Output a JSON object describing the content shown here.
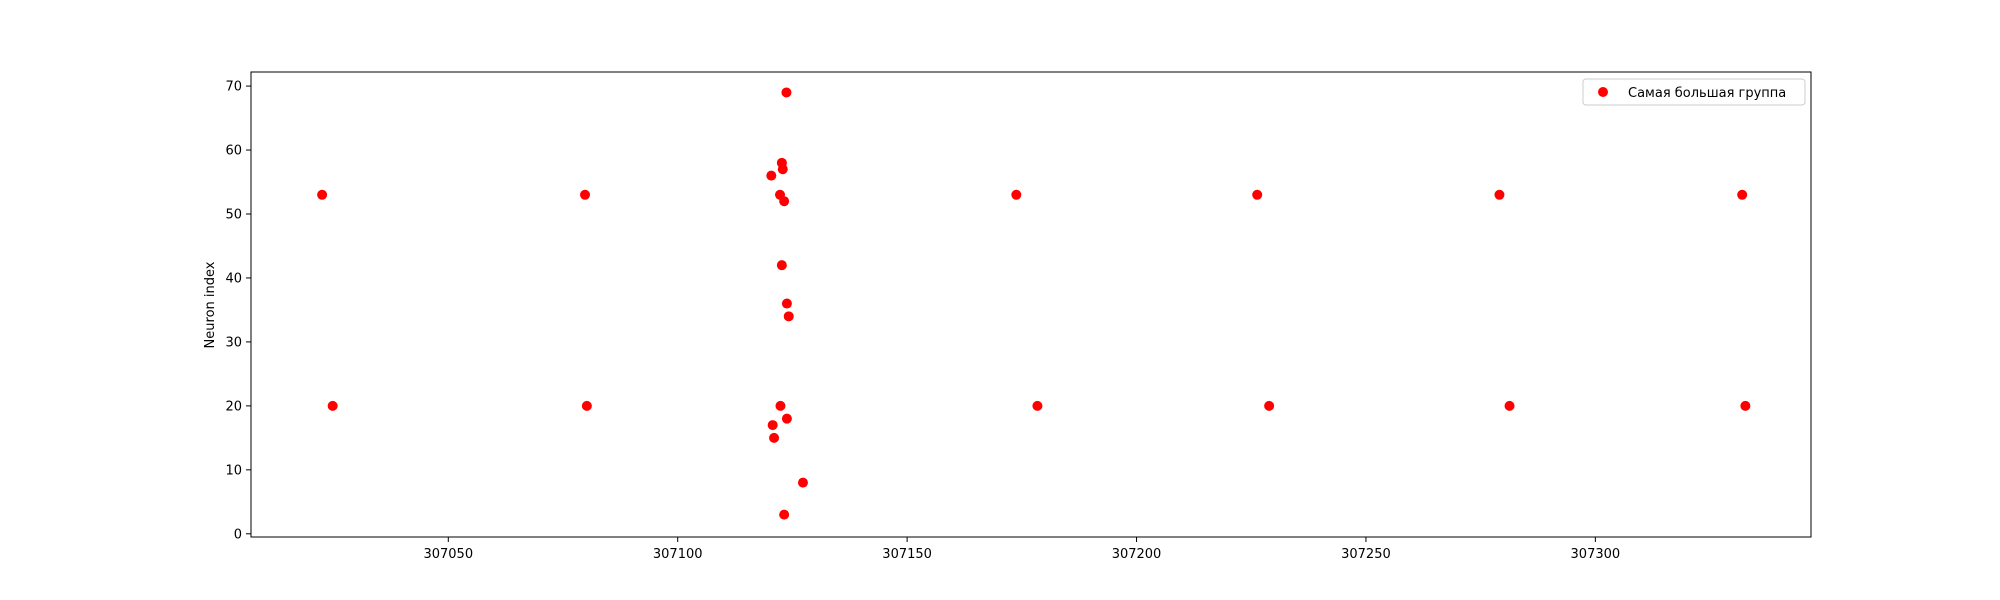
{
  "chart_data": {
    "type": "scatter",
    "title": "",
    "xlabel": "",
    "ylabel": "Neuron index",
    "xlim": [
      307007,
      307347
    ],
    "ylim": [
      -0.5,
      72.2
    ],
    "xticks": [
      307050,
      307100,
      307150,
      307200,
      307250,
      307300
    ],
    "yticks": [
      0,
      10,
      20,
      30,
      40,
      50,
      60,
      70
    ],
    "grid": false,
    "legend": {
      "position": "top-right"
    },
    "colors": {
      "series": "#ff0000",
      "axes": "#000000"
    },
    "series": [
      {
        "name": "Самая большая группа",
        "points": [
          {
            "x": 307022.5,
            "y": 53
          },
          {
            "x": 307024.8,
            "y": 20
          },
          {
            "x": 307079.8,
            "y": 53
          },
          {
            "x": 307080.2,
            "y": 20
          },
          {
            "x": 307120.4,
            "y": 56
          },
          {
            "x": 307120.7,
            "y": 17
          },
          {
            "x": 307121.0,
            "y": 15
          },
          {
            "x": 307122.3,
            "y": 53
          },
          {
            "x": 307122.4,
            "y": 20
          },
          {
            "x": 307122.7,
            "y": 42
          },
          {
            "x": 307122.7,
            "y": 58
          },
          {
            "x": 307122.9,
            "y": 57
          },
          {
            "x": 307123.2,
            "y": 3
          },
          {
            "x": 307123.2,
            "y": 52
          },
          {
            "x": 307123.7,
            "y": 69
          },
          {
            "x": 307123.8,
            "y": 36
          },
          {
            "x": 307123.8,
            "y": 18
          },
          {
            "x": 307124.2,
            "y": 34
          },
          {
            "x": 307127.3,
            "y": 8
          },
          {
            "x": 307173.8,
            "y": 53
          },
          {
            "x": 307178.4,
            "y": 20
          },
          {
            "x": 307226.3,
            "y": 53
          },
          {
            "x": 307228.9,
            "y": 20
          },
          {
            "x": 307279.1,
            "y": 53
          },
          {
            "x": 307281.3,
            "y": 20
          },
          {
            "x": 307332.0,
            "y": 53
          },
          {
            "x": 307332.7,
            "y": 20
          }
        ]
      }
    ]
  }
}
